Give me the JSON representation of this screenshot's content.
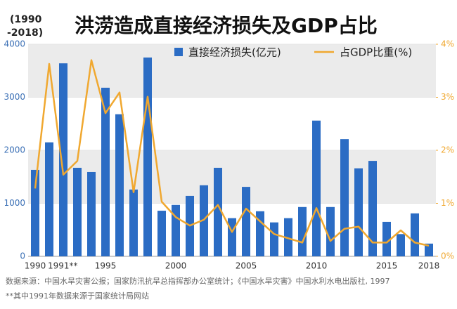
{
  "chart_data": {
    "type": "bar-line",
    "title_note": [
      "(1990",
      "-2018)"
    ],
    "title": "洪涝造成直接经济损失及GDP占比",
    "categories": [
      "1990",
      "1991**",
      null,
      null,
      null,
      "1995",
      null,
      null,
      null,
      null,
      "2000",
      null,
      null,
      null,
      null,
      "2005",
      null,
      null,
      null,
      null,
      "2010",
      null,
      null,
      null,
      null,
      "2015",
      null,
      null,
      "2018"
    ],
    "series": [
      {
        "name": "直接经济损失(亿元)",
        "type": "bar",
        "color": "#2b6cc4",
        "values": [
          1630,
          2150,
          3640,
          1670,
          1590,
          3180,
          2680,
          1260,
          3750,
          860,
          970,
          1140,
          1340,
          1670,
          720,
          1310,
          850,
          640,
          720,
          930,
          2560,
          930,
          2210,
          1660,
          1800,
          650,
          420,
          810,
          240
        ]
      },
      {
        "name": "占GDP比重(%)",
        "type": "line",
        "axis": "y2",
        "color": "#f0a830",
        "values": [
          1.28,
          3.63,
          1.54,
          1.8,
          3.7,
          2.7,
          3.09,
          1.21,
          3.01,
          1.03,
          0.74,
          0.58,
          0.69,
          0.97,
          0.46,
          0.9,
          0.66,
          0.42,
          0.34,
          0.26,
          0.91,
          0.29,
          0.52,
          0.56,
          0.26,
          0.26,
          0.49,
          0.26,
          0.2
        ]
      }
    ],
    "ylim": [
      0,
      4000
    ],
    "yticks": [
      0,
      1000,
      2000,
      3000,
      4000
    ],
    "y2lim": [
      0,
      4
    ],
    "y2ticks": [
      {
        "value": 0,
        "label": "0%"
      },
      {
        "value": 1,
        "label": "1%"
      },
      {
        "value": 2,
        "label": "2%"
      },
      {
        "value": 3,
        "label": "3%"
      },
      {
        "value": 4,
        "label": "4%"
      }
    ],
    "notes": [
      "数据来源：中国水旱灾害公报；国家防汛抗旱总指挥部办公室统计；《中国水旱灾害》中国水利水电出版社, 1997",
      "**其中1991年数据来源于国家统计局网站"
    ]
  }
}
